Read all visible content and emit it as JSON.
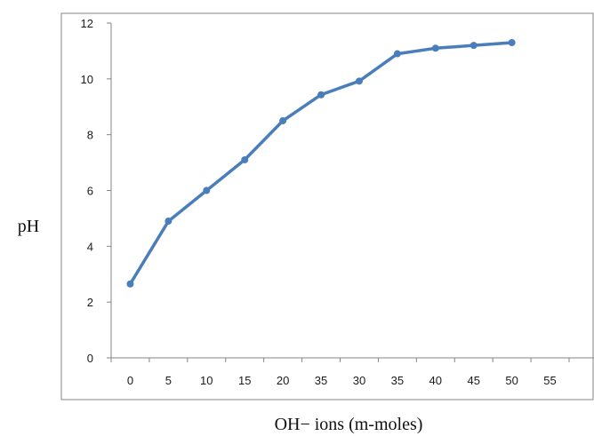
{
  "chart_data": {
    "type": "line",
    "xlabel": "OH− ions (m-moles)",
    "ylabel": "pH",
    "x_tick_labels": [
      "0",
      "5",
      "10",
      "15",
      "20",
      "35",
      "30",
      "35",
      "40",
      "45",
      "50",
      "55"
    ],
    "ylim": [
      0,
      12
    ],
    "y_ticks": [
      0,
      2,
      4,
      6,
      8,
      10,
      12
    ],
    "y_tick_labels": [
      "0",
      "2",
      "4",
      "6",
      "8",
      "10",
      "12"
    ],
    "grid": false,
    "legend": "none",
    "series": [
      {
        "x": [
          "0",
          "5",
          "10",
          "15",
          "20",
          "35",
          "30",
          "35",
          "40",
          "45",
          "50"
        ],
        "values": [
          2.65,
          4.9,
          6.0,
          7.1,
          8.5,
          9.43,
          9.92,
          10.9,
          11.1,
          11.2,
          11.3
        ]
      }
    ]
  },
  "colors": {
    "line": "#4a7ebb",
    "axis": "#868686",
    "frame": "#868686"
  }
}
